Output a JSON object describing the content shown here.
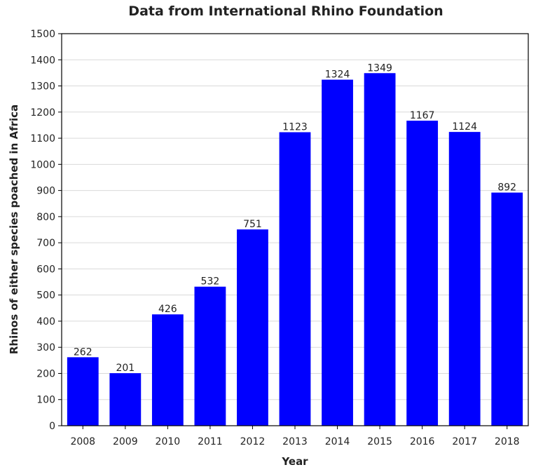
{
  "chart_data": {
    "type": "bar",
    "title": "Data from International Rhino Foundation",
    "xlabel": "Year",
    "ylabel": "Rhinos of either species poached in Africa",
    "categories": [
      "2008",
      "2009",
      "2010",
      "2011",
      "2012",
      "2013",
      "2014",
      "2015",
      "2016",
      "2017",
      "2018"
    ],
    "values": [
      262,
      201,
      426,
      532,
      751,
      1123,
      1324,
      1349,
      1167,
      1124,
      892
    ],
    "ylim": [
      0,
      1500
    ],
    "yticks": [
      0,
      100,
      200,
      300,
      400,
      500,
      600,
      700,
      800,
      900,
      1000,
      1100,
      1200,
      1300,
      1400,
      1500
    ],
    "grid": true,
    "bar_color": "#0000ff",
    "data_labels": true
  }
}
